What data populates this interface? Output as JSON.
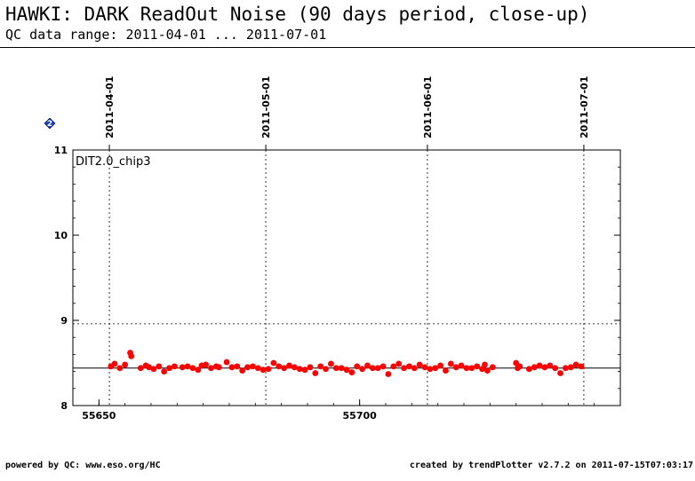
{
  "header": {
    "title": "HAWKI: DARK ReadOut Noise (90 days period, close-up)",
    "subtitle": "QC data range: 2011-04-01 ... 2011-07-01"
  },
  "footer": {
    "left": "powered by QC: www.eso.org/HC",
    "right": "created by trendPlotter v2.7.2 on 2011-07-15T07:03:17"
  },
  "icons": {
    "help": "help-diamond-icon"
  },
  "colors": {
    "points": "#ff0000",
    "help_icon": "#1a3fd6"
  },
  "chart_data": {
    "type": "scatter",
    "panel_label": "DIT2.0_chip3",
    "xlim": [
      55645,
      55750
    ],
    "ylim": [
      8,
      11
    ],
    "x_ticks": [
      55650,
      55700
    ],
    "y_ticks": [
      8,
      9,
      10,
      11
    ],
    "date_markers": [
      {
        "mjd": 55652,
        "label": "2011-04-01"
      },
      {
        "mjd": 55682,
        "label": "2011-05-01"
      },
      {
        "mjd": 55713,
        "label": "2011-06-01"
      },
      {
        "mjd": 55743,
        "label": "2011-07-01"
      }
    ],
    "reference_line": 8.44,
    "threshold_line": 8.96,
    "series": [
      {
        "x": [
          55652.3,
          55653.0,
          55654.0,
          55655.0,
          55656.0,
          55656.2,
          55658.0,
          55659.0,
          55659.6,
          55660.5,
          55661.5,
          55662.5,
          55663.5,
          55664.5,
          55666.0,
          55667.0,
          55668.0,
          55669.0,
          55669.7,
          55670.5,
          55671.5,
          55672.5,
          55673.0,
          55674.5,
          55675.5,
          55676.5,
          55677.5,
          55678.5,
          55679.5,
          55680.5,
          55681.5,
          55682.5,
          55683.5,
          55684.5,
          55685.5,
          55686.5,
          55687.5,
          55688.5,
          55689.5,
          55690.5,
          55691.5,
          55692.5,
          55693.5,
          55694.5,
          55695.5,
          55696.5,
          55697.5,
          55698.5,
          55699.5,
          55700.5,
          55701.5,
          55702.5,
          55703.5,
          55704.5,
          55705.5,
          55706.5,
          55707.5,
          55708.5,
          55709.5,
          55710.5,
          55711.5,
          55712.5,
          55713.5,
          55714.5,
          55715.5,
          55716.5,
          55717.5,
          55718.5,
          55719.5,
          55720.5,
          55721.5,
          55722.5,
          55723.5,
          55724.0,
          55724.5,
          55725.5,
          55730.0,
          55730.3,
          55730.7,
          55732.5,
          55733.5,
          55734.5,
          55735.5,
          55736.5,
          55737.5,
          55738.5,
          55739.5,
          55740.5,
          55741.5,
          55742.5
        ],
        "y": [
          8.46,
          8.49,
          8.44,
          8.48,
          8.62,
          8.58,
          8.44,
          8.47,
          8.45,
          8.43,
          8.46,
          8.4,
          8.44,
          8.46,
          8.45,
          8.46,
          8.44,
          8.42,
          8.47,
          8.48,
          8.44,
          8.46,
          8.45,
          8.51,
          8.45,
          8.46,
          8.41,
          8.45,
          8.46,
          8.44,
          8.42,
          8.43,
          8.5,
          8.46,
          8.44,
          8.47,
          8.45,
          8.43,
          8.42,
          8.45,
          8.38,
          8.46,
          8.43,
          8.49,
          8.44,
          8.44,
          8.42,
          8.39,
          8.46,
          8.43,
          8.47,
          8.44,
          8.44,
          8.46,
          8.37,
          8.46,
          8.49,
          8.44,
          8.46,
          8.44,
          8.48,
          8.45,
          8.43,
          8.44,
          8.47,
          8.41,
          8.49,
          8.45,
          8.47,
          8.44,
          8.44,
          8.46,
          8.43,
          8.48,
          8.41,
          8.45,
          8.5,
          8.44,
          8.46,
          8.43,
          8.45,
          8.47,
          8.45,
          8.47,
          8.44,
          8.38,
          8.44,
          8.45,
          8.48,
          8.46
        ]
      }
    ]
  }
}
